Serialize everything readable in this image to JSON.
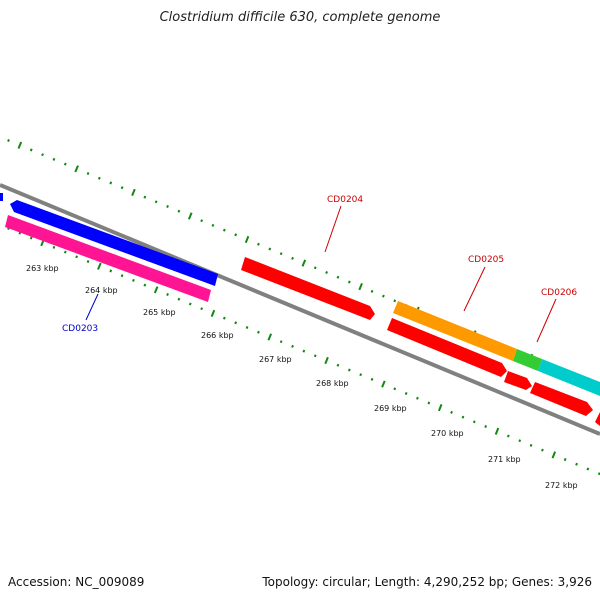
{
  "title": "Clostridium difficile 630, complete genome",
  "footer": {
    "accession": "Accession: NC_009089",
    "topology": "Topology: circular; Length: 4,290,252 bp; Genes: 3,926"
  },
  "colors": {
    "backbone": "#808080",
    "ticks": "#118811",
    "red": "#ff0000",
    "blue": "#0000ff",
    "pink": "#ff1493",
    "orange": "#ff9900",
    "cyan": "#00cccc",
    "green": "#33cc33",
    "label_red": "#cc0000",
    "label_blue": "#0000cc"
  },
  "kbp_labels": [
    "263 kbp",
    "264 kbp",
    "265 kbp",
    "266 kbp",
    "267 kbp",
    "268 kbp",
    "269 kbp",
    "270 kbp",
    "271 kbp",
    "272 kbp"
  ],
  "gene_labels": [
    {
      "name": "CD0203",
      "color": "label_blue"
    },
    {
      "name": "CD0204",
      "color": "label_red"
    },
    {
      "name": "CD0205",
      "color": "label_red"
    },
    {
      "name": "CD0206",
      "color": "label_red"
    }
  ]
}
